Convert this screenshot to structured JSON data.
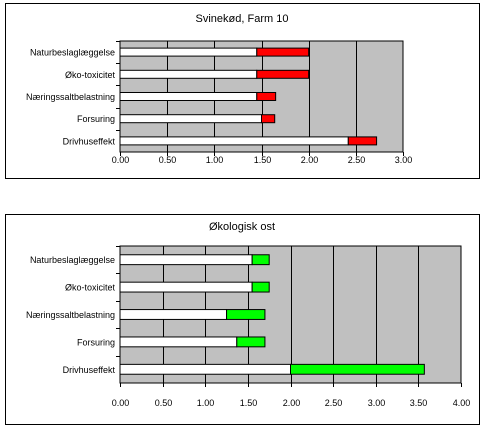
{
  "chart_data": [
    {
      "type": "bar",
      "orientation": "horizontal",
      "stacked": true,
      "title": "Svinekød, Farm 10",
      "categories": [
        "Naturbeslaglæggelse",
        "Øko-toxicitet",
        "Næringssaltbelastning",
        "Forsuring",
        "Drivhuseffekt"
      ],
      "series": [
        {
          "values": [
            1.45,
            1.45,
            1.45,
            1.5,
            2.42
          ],
          "color": "#ffffff"
        },
        {
          "values": [
            0.55,
            0.55,
            0.2,
            0.14,
            0.3
          ],
          "color": "#ff0000"
        }
      ],
      "xlim": [
        0,
        3
      ],
      "xticks": [
        "0.00",
        "0.50",
        "1.00",
        "1.50",
        "2.00",
        "2.50",
        "3.00"
      ],
      "plot_background": "#c0c0c0",
      "grid": "vertical"
    },
    {
      "type": "bar",
      "orientation": "horizontal",
      "stacked": true,
      "title": "Økologisk ost",
      "categories": [
        "Naturbeslaglæggelse",
        "Øko-toxicitet",
        "Næringssaltbelastning",
        "Forsuring",
        "Drivhuseffekt"
      ],
      "series": [
        {
          "values": [
            1.55,
            1.55,
            1.25,
            1.37,
            2.0
          ],
          "color": "#ffffff"
        },
        {
          "values": [
            0.2,
            0.2,
            0.45,
            0.33,
            1.57
          ],
          "color": "#00ff00"
        }
      ],
      "xlim": [
        0,
        4
      ],
      "xticks": [
        "0.00",
        "0.50",
        "1.00",
        "1.50",
        "2.00",
        "2.50",
        "3.00",
        "3.50",
        "4.00"
      ],
      "plot_background": "#c0c0c0",
      "grid": "vertical"
    }
  ]
}
